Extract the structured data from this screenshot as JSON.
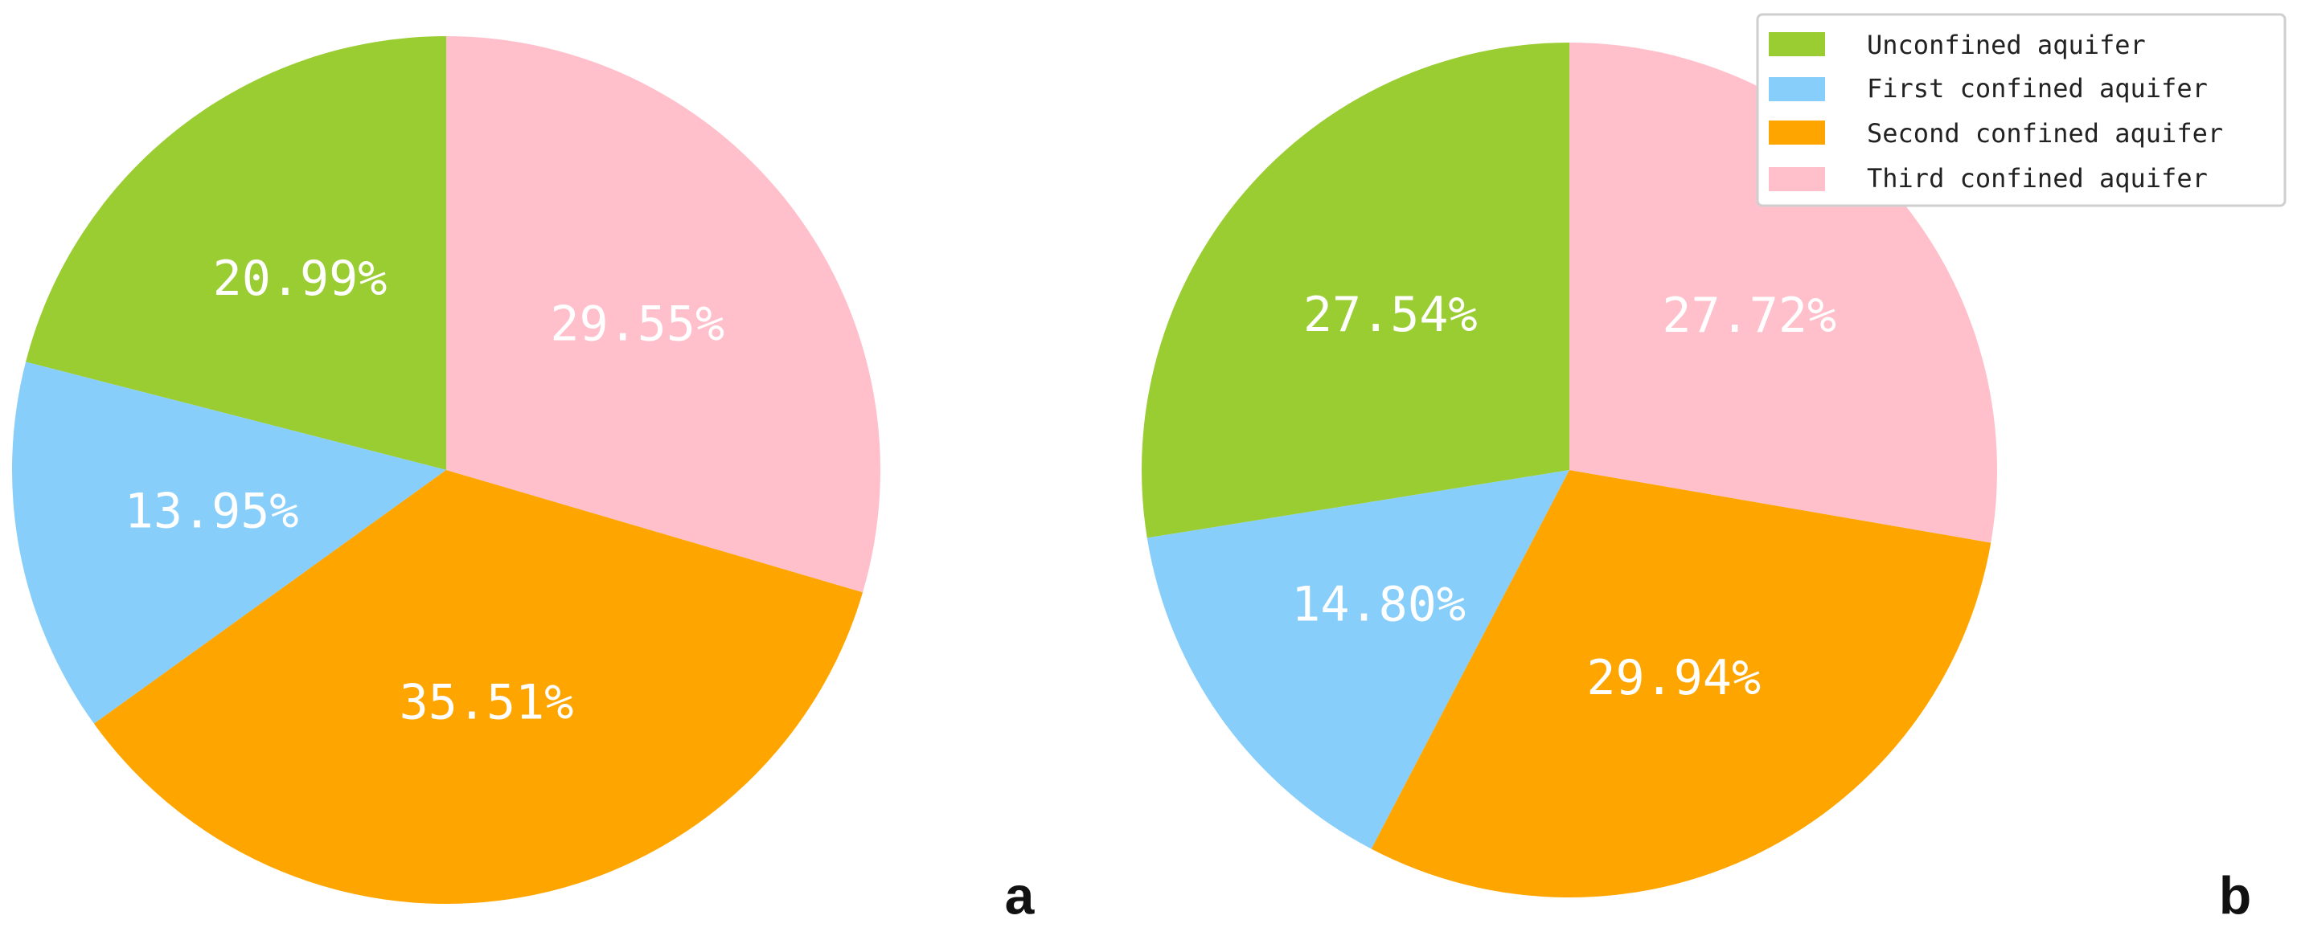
{
  "chart_data": [
    {
      "type": "pie",
      "panel_label": "a",
      "series": [
        {
          "name": "Unconfined aquifer",
          "value": 20.99,
          "label": "20.99%"
        },
        {
          "name": "First confined aquifer",
          "value": 13.95,
          "label": "13.95%"
        },
        {
          "name": "Second confined aquifer",
          "value": 35.51,
          "label": "35.51%"
        },
        {
          "name": "Third confined aquifer",
          "value": 29.55,
          "label": "29.55%"
        }
      ]
    },
    {
      "type": "pie",
      "panel_label": "b",
      "series": [
        {
          "name": "Unconfined aquifer",
          "value": 27.54,
          "label": "27.54%"
        },
        {
          "name": "First confined aquifer",
          "value": 14.8,
          "label": "14.80%"
        },
        {
          "name": "Second confined aquifer",
          "value": 29.94,
          "label": "29.94%"
        },
        {
          "name": "Third confined aquifer",
          "value": 27.72,
          "label": "27.72%"
        }
      ]
    }
  ],
  "legend": {
    "placement": "top-right",
    "entries": [
      {
        "label": "Unconfined aquifer",
        "color": "#9acd32"
      },
      {
        "label": "First confined aquifer",
        "color": "#87cefa"
      },
      {
        "label": "Second confined aquifer",
        "color": "#ffa500"
      },
      {
        "label": "Third confined aquifer",
        "color": "#ffc0cb"
      }
    ]
  },
  "colors": {
    "unconfined": "#9acd32",
    "first_confined": "#87cefa",
    "second_confined": "#ffa500",
    "third_confined": "#ffc0cb",
    "label_text": "#ffffff"
  }
}
